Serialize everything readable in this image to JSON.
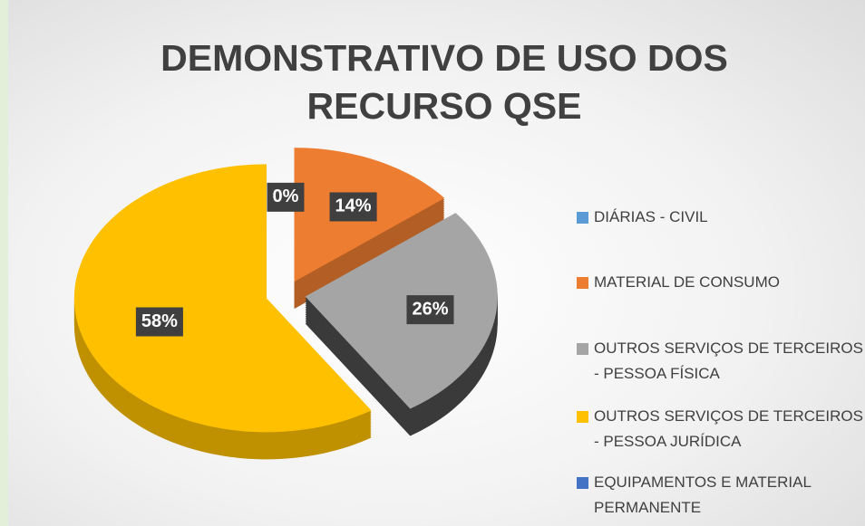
{
  "chart_data": {
    "type": "pie",
    "title": "DEMONSTRATIVO DE USO DOS RECURSO QSE",
    "categories": [
      "DIÁRIAS - CIVIL",
      "MATERIAL DE CONSUMO",
      "OUTROS SERVIÇOS DE TERCEIROS - PESSOA FÍSICA",
      "OUTROS SERVIÇOS DE TERCEIROS - PESSOA JURÍDICA",
      "EQUIPAMENTOS E MATERIAL PERMANENTE"
    ],
    "values": [
      0,
      14,
      26,
      58,
      0
    ],
    "value_labels": [
      "0%",
      "14%",
      "26%",
      "58%",
      null
    ],
    "colors": [
      "#5b9bd5",
      "#ed7d31",
      "#a5a5a5",
      "#ffc000",
      "#4472c4"
    ],
    "legend": "right"
  }
}
